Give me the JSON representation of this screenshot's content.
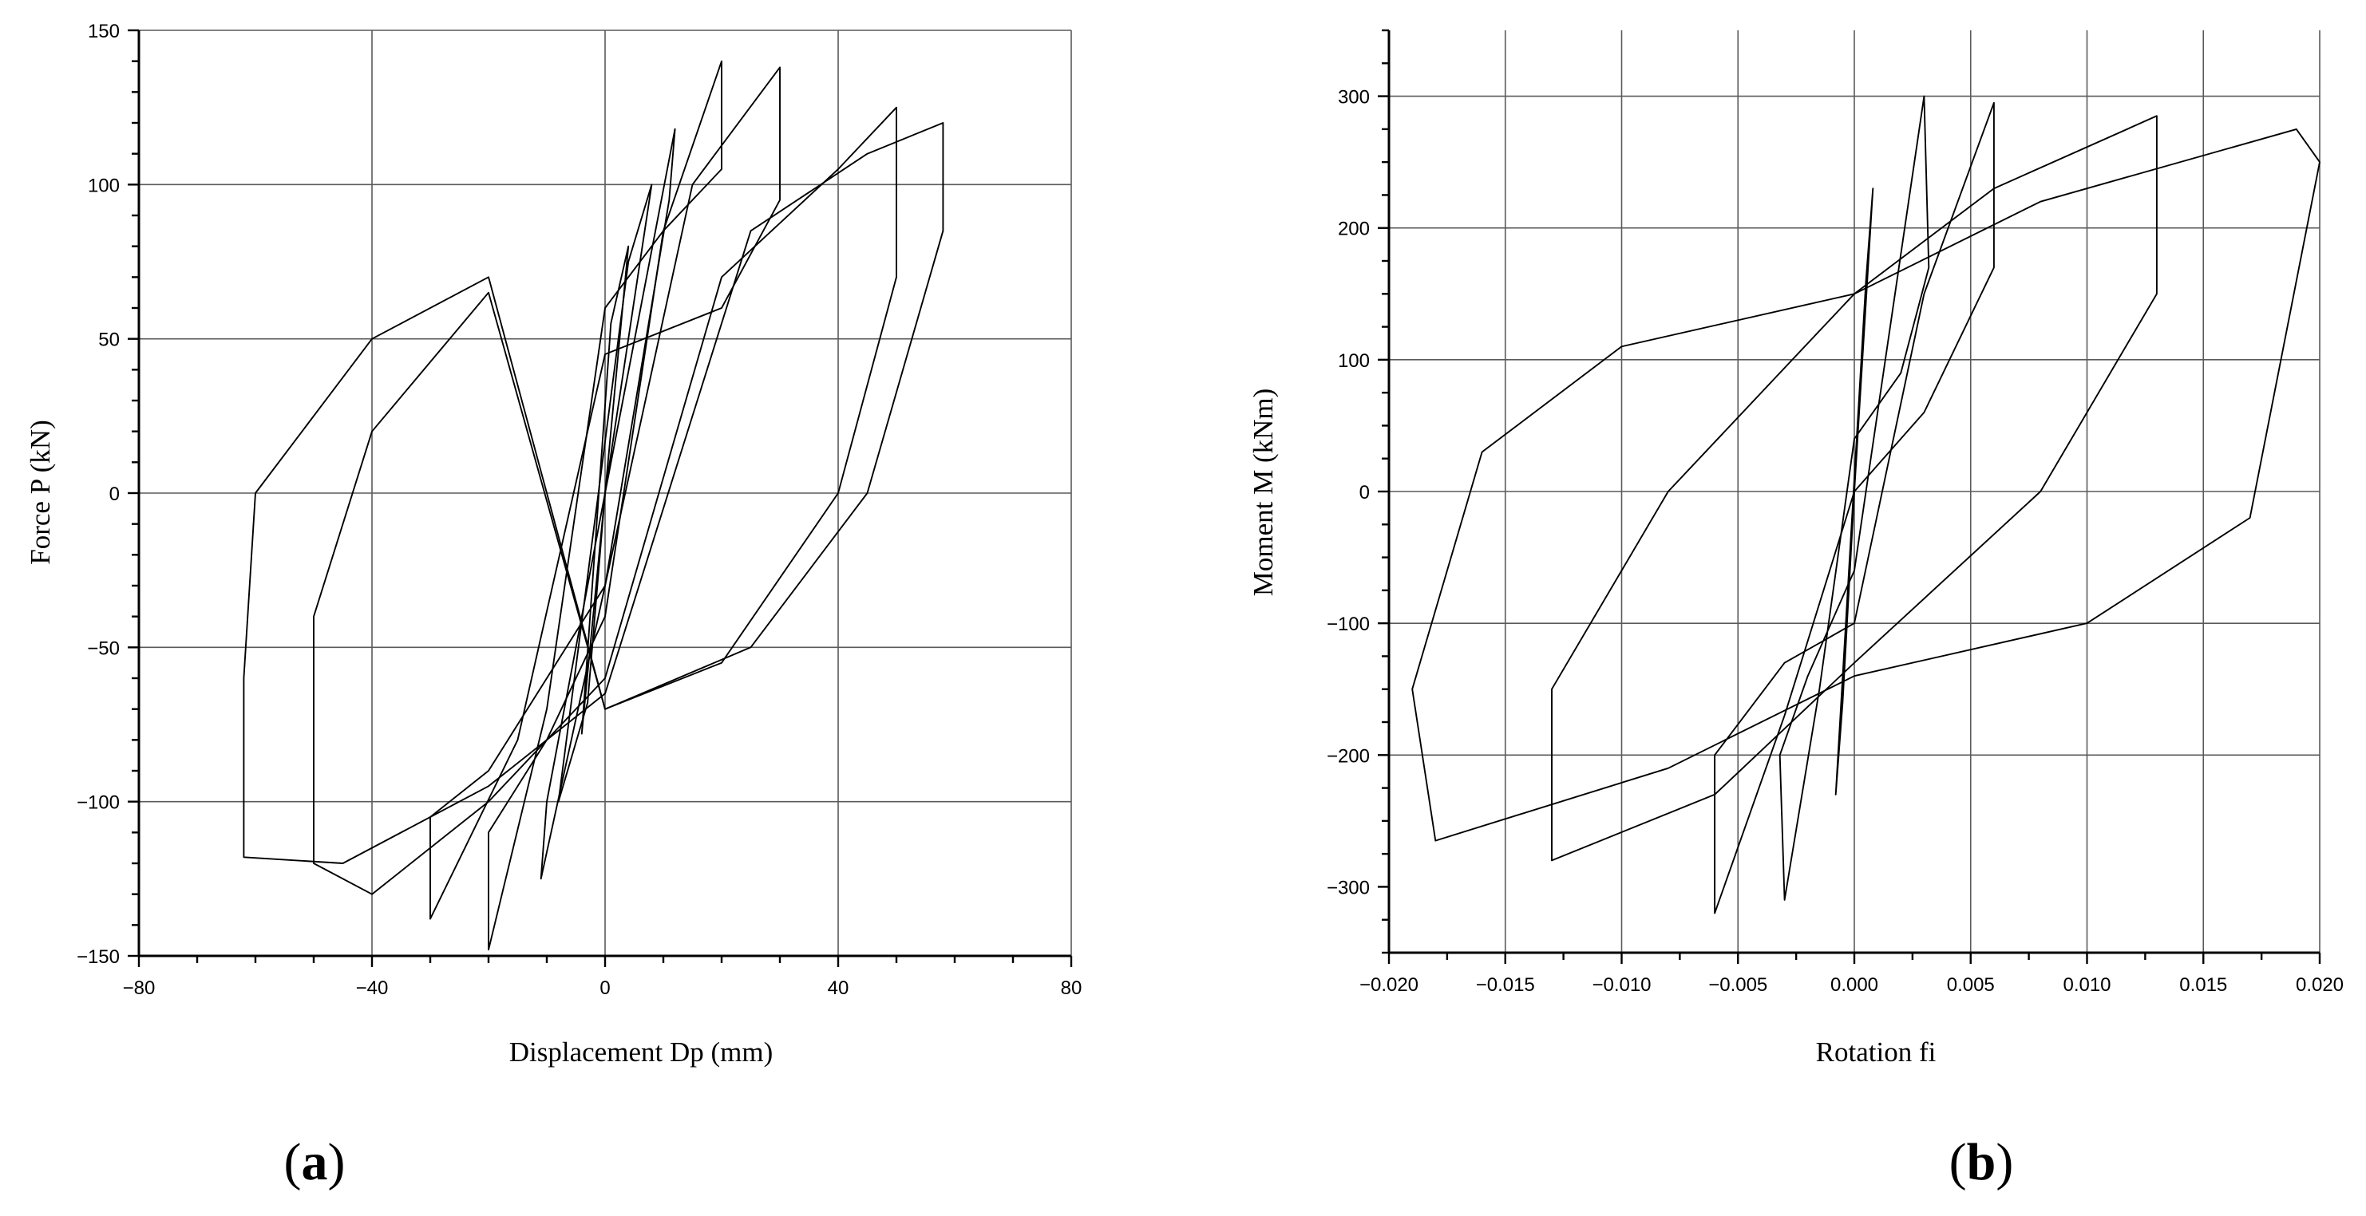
{
  "chart_data": [
    {
      "type": "line",
      "panel": "(a)",
      "xlabel": "Displacement Dp (mm)",
      "ylabel": "Force P (kN)",
      "xlim": [
        -80,
        80
      ],
      "ylim": [
        -150,
        150
      ],
      "xticks": [
        -80,
        -40,
        0,
        40,
        80
      ],
      "yticks": [
        -150,
        -100,
        -50,
        0,
        50,
        100,
        150
      ],
      "xtick_labels": [
        "−80",
        "−40",
        "0",
        "40",
        "80"
      ],
      "ytick_labels": [
        "−150",
        "−100",
        "−50",
        "0",
        "50",
        "100",
        "150"
      ],
      "grid": true,
      "series": [
        {
          "x": [
            0,
            4,
            1,
            -4,
            0
          ],
          "y": [
            0,
            80,
            55,
            -78,
            0
          ]
        },
        {
          "x": [
            0,
            8,
            4,
            -8,
            -3,
            0
          ],
          "y": [
            0,
            100,
            75,
            -100,
            -68,
            0
          ]
        },
        {
          "x": [
            0,
            12,
            11,
            0,
            -11,
            -10,
            0
          ],
          "y": [
            0,
            118,
            95,
            -30,
            -125,
            -100,
            0
          ]
        },
        {
          "x": [
            0,
            10,
            20,
            20,
            10,
            0,
            -10,
            -20,
            -20,
            -10,
            0
          ],
          "y": [
            -40,
            85,
            140,
            105,
            85,
            60,
            -70,
            -148,
            -110,
            -80,
            -40
          ]
        },
        {
          "x": [
            0,
            15,
            30,
            30,
            20,
            0,
            -15,
            -30,
            -30,
            -20,
            0
          ],
          "y": [
            -30,
            100,
            138,
            95,
            60,
            45,
            -80,
            -138,
            -105,
            -90,
            -30
          ]
        },
        {
          "x": [
            0,
            20,
            40,
            50,
            50,
            40,
            20,
            0,
            -20,
            -40,
            -50,
            -50,
            -40,
            -20,
            0
          ],
          "y": [
            -60,
            70,
            105,
            125,
            70,
            0,
            -55,
            -70,
            65,
            20,
            -40,
            -120,
            -130,
            -100,
            -60
          ]
        },
        {
          "x": [
            0,
            25,
            45,
            58,
            58,
            45,
            25,
            0,
            -20,
            -40,
            -60,
            -62,
            -62,
            -45,
            -20,
            0
          ],
          "y": [
            -65,
            85,
            110,
            120,
            85,
            0,
            -50,
            -70,
            70,
            50,
            0,
            -60,
            -118,
            -120,
            -95,
            -65
          ]
        }
      ]
    },
    {
      "type": "line",
      "panel": "(b)",
      "xlabel": "Rotation fi",
      "ylabel": "Moment M (kNm)",
      "xlim": [
        -0.02,
        0.02
      ],
      "ylim": [
        -350,
        350
      ],
      "xticks": [
        -0.02,
        -0.015,
        -0.01,
        -0.005,
        0,
        0.005,
        0.01,
        0.015,
        0.02
      ],
      "yticks": [
        -300,
        -200,
        -100,
        0,
        100,
        200,
        300
      ],
      "xtick_labels": [
        "−0.020",
        "−0.015",
        "−0.010",
        "−0.005",
        "0.000",
        "0.005",
        "0.010",
        "0.015",
        "0.020"
      ],
      "ytick_labels": [
        "−300",
        "−200",
        "−100",
        "0",
        "100",
        "200",
        "300"
      ],
      "grid": true,
      "series": [
        {
          "x": [
            0,
            0.0008,
            0.0005,
            -0.0008,
            -0.0005,
            0
          ],
          "y": [
            0,
            230,
            160,
            -230,
            -160,
            0
          ]
        },
        {
          "x": [
            0,
            0.0015,
            0.003,
            0.0032,
            0.002,
            0,
            -0.0015,
            -0.003,
            -0.0032,
            -0.002,
            0
          ],
          "y": [
            -60,
            120,
            300,
            170,
            90,
            40,
            -150,
            -310,
            -200,
            -140,
            -60
          ]
        },
        {
          "x": [
            0,
            0.003,
            0.006,
            0.006,
            0.003,
            0,
            -0.003,
            -0.006,
            -0.006,
            -0.003,
            0
          ],
          "y": [
            -100,
            150,
            295,
            170,
            60,
            0,
            -170,
            -320,
            -200,
            -130,
            -100
          ]
        },
        {
          "x": [
            0,
            0.006,
            0.013,
            0.013,
            0.008,
            0,
            -0.006,
            -0.013,
            -0.013,
            -0.008,
            0
          ],
          "y": [
            150,
            230,
            285,
            150,
            0,
            -130,
            -230,
            -280,
            -150,
            0,
            150
          ]
        },
        {
          "x": [
            0,
            0.008,
            0.019,
            0.02,
            0.017,
            0.01,
            0,
            -0.008,
            -0.018,
            -0.019,
            -0.016,
            -0.01,
            0
          ],
          "y": [
            150,
            220,
            275,
            250,
            -20,
            -100,
            -140,
            -210,
            -265,
            -150,
            30,
            110,
            150
          ]
        }
      ]
    }
  ]
}
